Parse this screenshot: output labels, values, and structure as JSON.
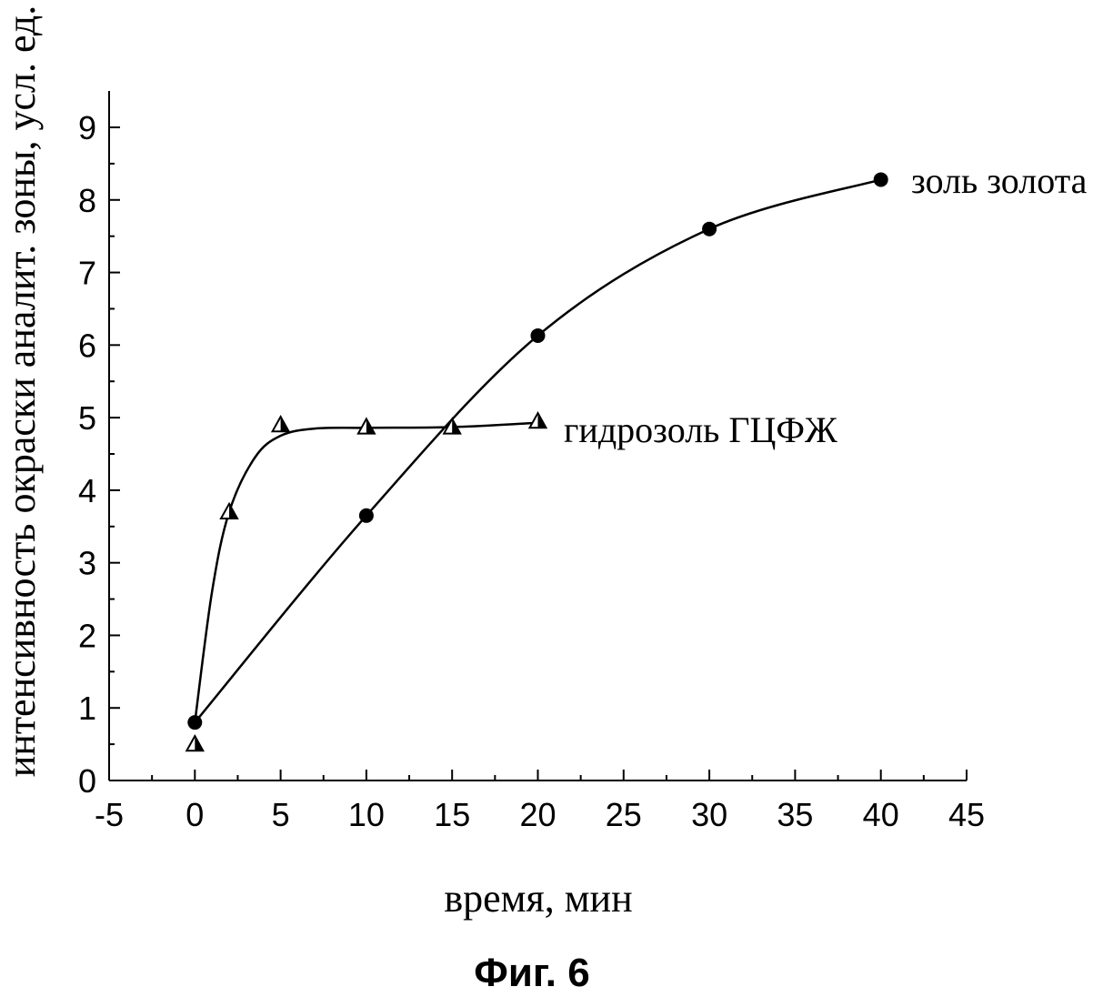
{
  "chart_data": {
    "type": "scatter",
    "title": "",
    "caption": "Фиг. 6",
    "xlabel": "время, мин",
    "ylabel": "интенсивность окраски аналит. зоны, усл. ед.",
    "xlim": [
      -5,
      45
    ],
    "ylim": [
      0,
      9.5
    ],
    "xticks": [
      -5,
      0,
      5,
      10,
      15,
      20,
      25,
      30,
      35,
      40,
      45
    ],
    "yticks": [
      0,
      1,
      2,
      3,
      4,
      5,
      6,
      7,
      8,
      9
    ],
    "grid": false,
    "legend": "none",
    "series": [
      {
        "name": "золь золота",
        "marker": "circle",
        "color": "#000000",
        "x": [
          0,
          10,
          20,
          30,
          40
        ],
        "y": [
          0.8,
          3.65,
          6.13,
          7.6,
          8.28
        ]
      },
      {
        "name": "гидрозоль ГЦФЖ",
        "marker": "triangle",
        "color": "#000000",
        "x": [
          0,
          2,
          5,
          10,
          15,
          20
        ],
        "y": [
          0.5,
          3.7,
          4.9,
          4.87,
          4.87,
          4.95
        ]
      }
    ]
  }
}
